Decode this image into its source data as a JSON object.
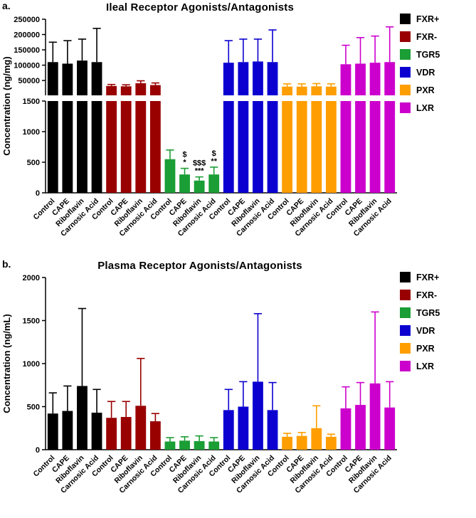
{
  "panels": [
    {
      "label": "a."
    },
    {
      "label": "b."
    }
  ],
  "chart_data": [
    {
      "type": "bar",
      "title": "Ileal Receptor Agonists/Antagonists",
      "ylabel": "Concentration (ng/mg)",
      "categories": [
        "Control",
        "CAPE",
        "Riboflavin",
        "Carnosic Acid"
      ],
      "legend_position": "right",
      "grid": false,
      "axis_break": {
        "lower_max": 1500,
        "upper_min": 1500,
        "upper_max": 250000,
        "lower_ticks": [
          0,
          500,
          1000,
          1500
        ],
        "upper_ticks": [
          50000,
          100000,
          150000,
          200000,
          250000
        ]
      },
      "groups": [
        {
          "name": "FXR+",
          "color": "#000000",
          "values": [
            110000,
            105000,
            115000,
            110000
          ],
          "errors": [
            65000,
            75000,
            70000,
            110000
          ]
        },
        {
          "name": "FXR-",
          "color": "#990000",
          "values": [
            32000,
            31000,
            41000,
            35000
          ],
          "errors": [
            5000,
            5000,
            8000,
            7000
          ]
        },
        {
          "name": "TGR5",
          "color": "#1a9e35",
          "values": [
            550,
            300,
            200,
            300
          ],
          "errors": [
            150,
            100,
            60,
            120
          ],
          "annotations": [
            [],
            [
              "$",
              "*"
            ],
            [
              "$$$",
              "***"
            ],
            [
              "$",
              "**"
            ]
          ]
        },
        {
          "name": "VDR",
          "color": "#0b00d0",
          "values": [
            108000,
            110000,
            112000,
            110000
          ],
          "errors": [
            72000,
            75000,
            73000,
            105000
          ]
        },
        {
          "name": "PXR",
          "color": "#ff9e00",
          "values": [
            30000,
            30000,
            31000,
            30000
          ],
          "errors": [
            9000,
            9000,
            9000,
            9000
          ]
        },
        {
          "name": "LXR",
          "color": "#cc00cc",
          "values": [
            103000,
            105000,
            108000,
            110000
          ],
          "errors": [
            62000,
            85000,
            87000,
            115000
          ]
        }
      ]
    },
    {
      "type": "bar",
      "title": "Plasma Receptor Agonists/Antagonists",
      "ylabel": "Concentration (ng/mL)",
      "categories": [
        "Control",
        "CAPE",
        "Riboflavin",
        "Carnosic Acid"
      ],
      "legend_position": "right",
      "grid": false,
      "ylim": [
        0,
        2000
      ],
      "yticks": [
        0,
        500,
        1000,
        1500,
        2000
      ],
      "groups": [
        {
          "name": "FXR+",
          "color": "#000000",
          "values": [
            420,
            450,
            740,
            430
          ],
          "errors": [
            240,
            290,
            900,
            270
          ]
        },
        {
          "name": "FXR-",
          "color": "#990000",
          "values": [
            370,
            380,
            510,
            330
          ],
          "errors": [
            190,
            180,
            550,
            90
          ]
        },
        {
          "name": "TGR5",
          "color": "#1a9e35",
          "values": [
            95,
            105,
            100,
            95
          ],
          "errors": [
            45,
            45,
            60,
            45
          ]
        },
        {
          "name": "VDR",
          "color": "#0b00d0",
          "values": [
            460,
            500,
            790,
            460
          ],
          "errors": [
            240,
            290,
            790,
            320
          ]
        },
        {
          "name": "PXR",
          "color": "#ff9e00",
          "values": [
            150,
            160,
            250,
            150
          ],
          "errors": [
            40,
            40,
            260,
            30
          ]
        },
        {
          "name": "LXR",
          "color": "#cc00cc",
          "values": [
            480,
            520,
            770,
            490
          ],
          "errors": [
            250,
            260,
            830,
            300
          ]
        }
      ]
    }
  ]
}
